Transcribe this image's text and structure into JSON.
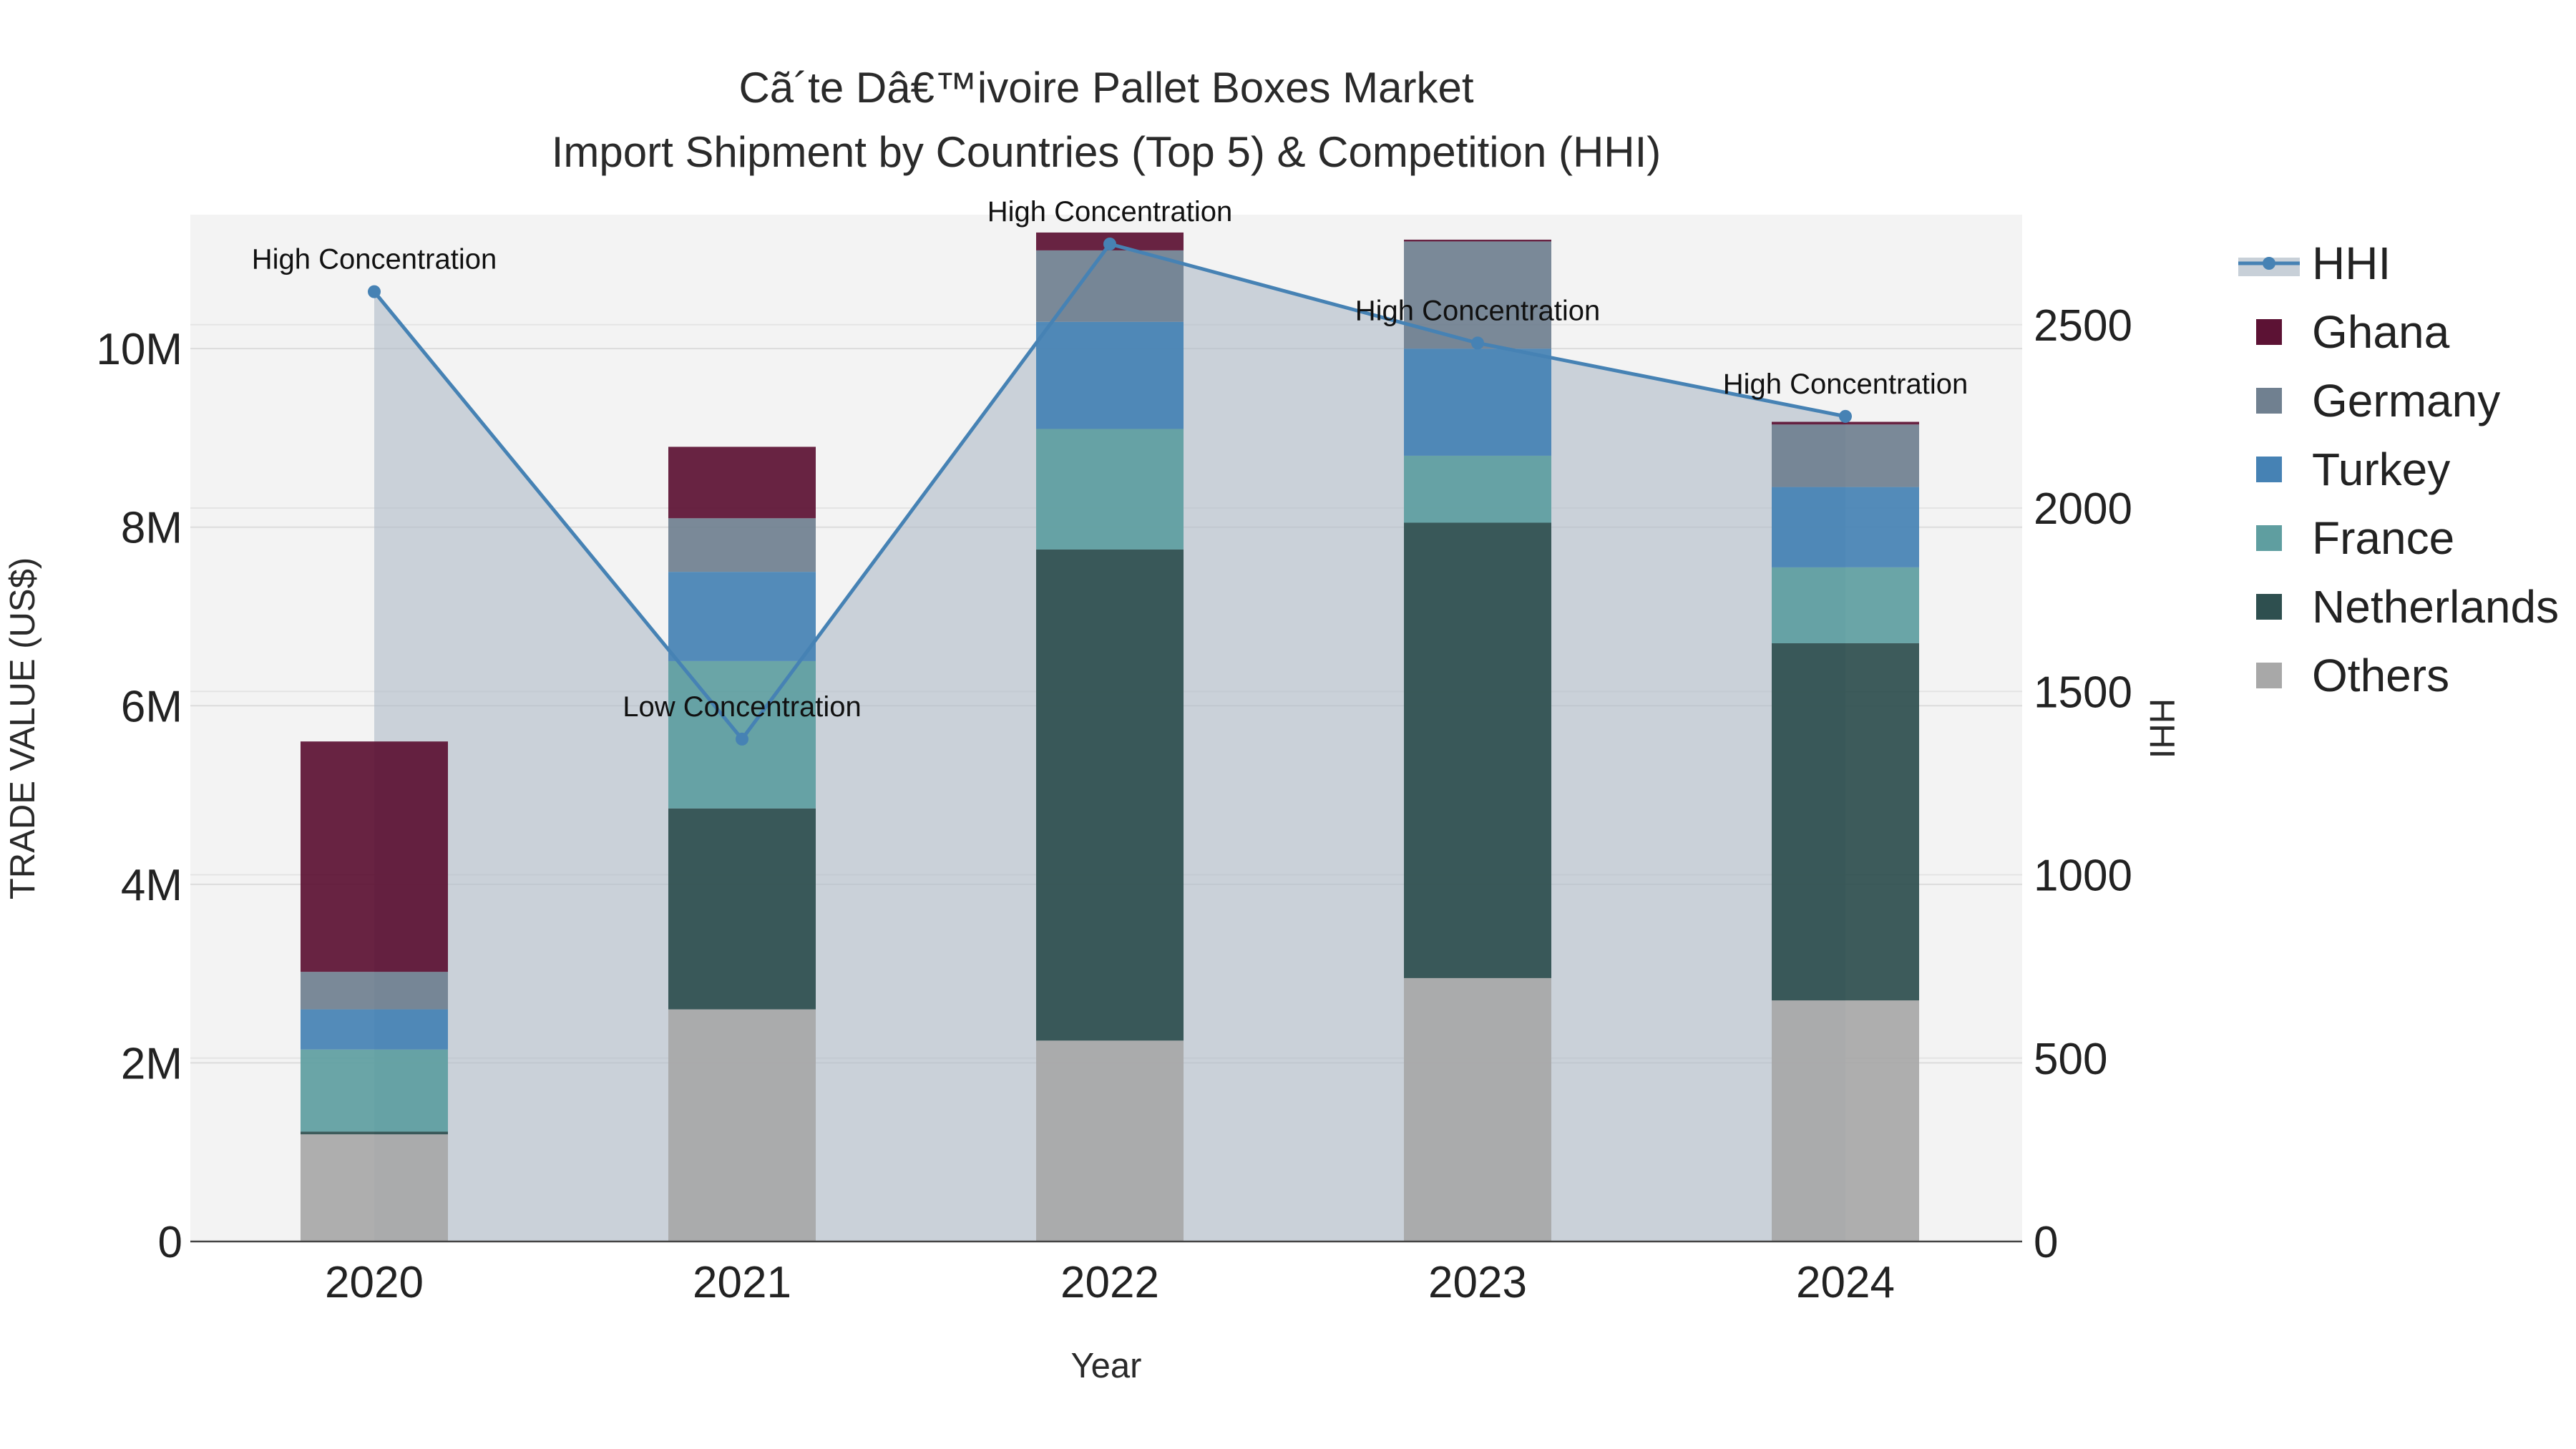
{
  "chart_data": {
    "type": "bar",
    "stacked": true,
    "title": "Cã´te Dâ€™ivoire Pallet Boxes Market",
    "subtitle": "Import Shipment by Countries (Top 5) & Competition (HHI)",
    "xlabel": "Year",
    "ylabel": "TRADE VALUE (US$)",
    "y2label": "HHI",
    "categories": [
      "2020",
      "2021",
      "2022",
      "2023",
      "2024"
    ],
    "ylim": [
      0,
      11500000
    ],
    "y2lim": [
      0,
      2800
    ],
    "y_ticks": [
      {
        "value": 0,
        "label": "0"
      },
      {
        "value": 2000000,
        "label": "2M"
      },
      {
        "value": 4000000,
        "label": "4M"
      },
      {
        "value": 6000000,
        "label": "6M"
      },
      {
        "value": 8000000,
        "label": "8M"
      },
      {
        "value": 10000000,
        "label": "10M"
      }
    ],
    "y2_ticks": [
      {
        "value": 0,
        "label": "0"
      },
      {
        "value": 500,
        "label": "500"
      },
      {
        "value": 1000,
        "label": "1000"
      },
      {
        "value": 1500,
        "label": "1500"
      },
      {
        "value": 2000,
        "label": "2000"
      },
      {
        "value": 2500,
        "label": "2500"
      }
    ],
    "series": [
      {
        "name": "Others",
        "color": "#a8a8a8",
        "values": [
          1200000,
          2600000,
          2250000,
          2950000,
          2700000
        ]
      },
      {
        "name": "Netherlands",
        "color": "#2e4f4f",
        "values": [
          30000,
          2250000,
          5500000,
          5100000,
          4000000
        ]
      },
      {
        "name": "France",
        "color": "#5f9ea0",
        "values": [
          920000,
          1650000,
          1350000,
          750000,
          850000
        ]
      },
      {
        "name": "Turkey",
        "color": "#4682b4",
        "values": [
          450000,
          1000000,
          1200000,
          1200000,
          900000
        ]
      },
      {
        "name": "Germany",
        "color": "#708090",
        "values": [
          420000,
          600000,
          800000,
          1200000,
          700000
        ]
      },
      {
        "name": "Ghana",
        "color": "#5c1234",
        "values": [
          2580000,
          800000,
          200000,
          20000,
          30000
        ]
      }
    ],
    "hhi": {
      "name": "HHI",
      "color": "#4682b4",
      "values": [
        2590,
        1370,
        2720,
        2450,
        2250
      ],
      "labels": [
        "High Concentration",
        "Low Concentration",
        "High Concentration",
        "High Concentration",
        "High Concentration"
      ]
    },
    "legend_order": [
      "HHI",
      "Ghana",
      "Germany",
      "Turkey",
      "France",
      "Netherlands",
      "Others"
    ],
    "legend_position": "right"
  }
}
